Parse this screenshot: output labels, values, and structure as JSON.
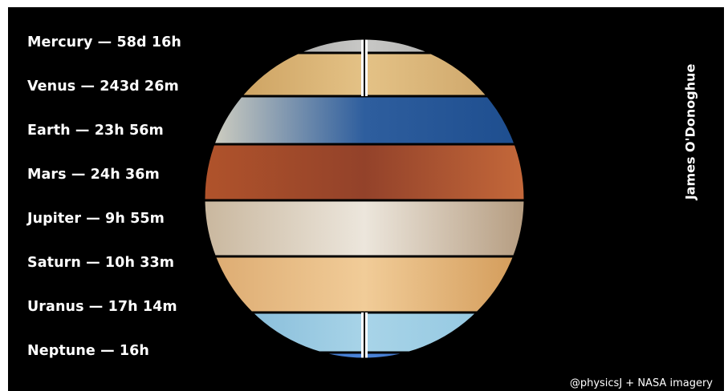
{
  "planets": [
    {
      "label": "Mercury — 58d 16h",
      "colors": [
        "#8f8f8f",
        "#c8c8c6",
        "#9a9a98"
      ]
    },
    {
      "label": "Venus — 243d 26m",
      "colors": [
        "#c79a58",
        "#e4c286",
        "#c9a064"
      ]
    },
    {
      "label": "Earth — 23h 56m",
      "colors": [
        "#d8d4c2",
        "#2e5e9e",
        "#1d4d8e"
      ]
    },
    {
      "label": "Mars — 24h 36m",
      "colors": [
        "#b0532b",
        "#93422a",
        "#c4683a"
      ]
    },
    {
      "label": "Jupiter — 9h 55m",
      "colors": [
        "#c9b79e",
        "#ece6dc",
        "#b59c80"
      ]
    },
    {
      "label": "Saturn — 10h 33m",
      "colors": [
        "#dcaa70",
        "#f1cc98",
        "#d29a58"
      ]
    },
    {
      "label": "Uranus — 17h 14m",
      "colors": [
        "#7db5d5",
        "#a8d4e8",
        "#8ec4df"
      ]
    },
    {
      "label": "Neptune — 16h",
      "colors": [
        "#2f63b8",
        "#4b84d8",
        "#2a58a8"
      ]
    }
  ],
  "author_credit": "James O'Donoghue",
  "source_credit": "@physicsJ + NASA imagery"
}
